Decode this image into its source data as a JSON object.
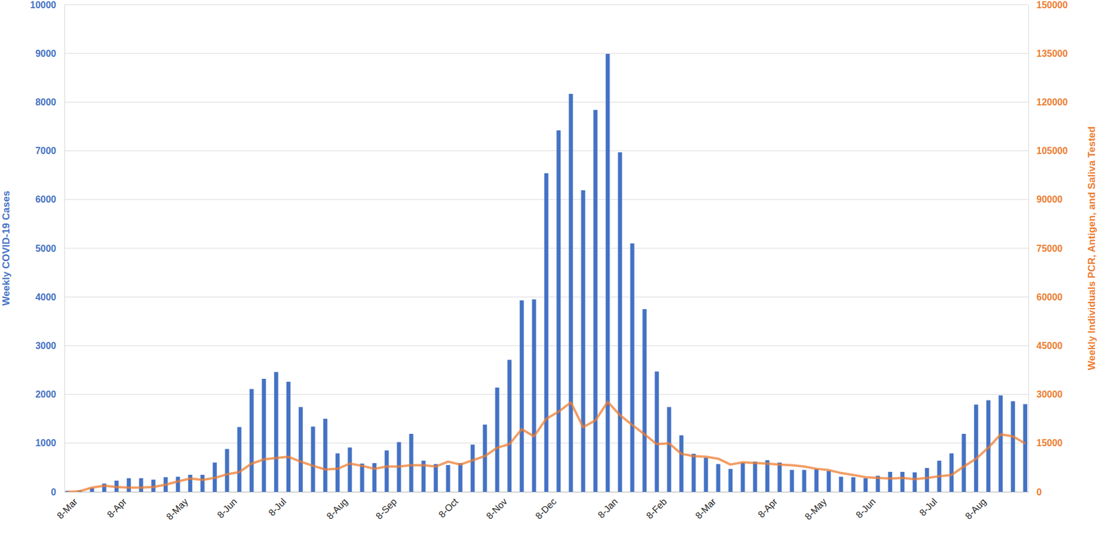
{
  "chart_data": {
    "type": "bar",
    "ylabel": "Weekly COVID-19 Cases",
    "y2label": "Weekly Individuals PCR, Antigen, and Saliva Tested",
    "categories": [
      "8-Mar",
      null,
      null,
      null,
      "8-Apr",
      null,
      null,
      null,
      null,
      "8-May",
      null,
      null,
      null,
      "8-Jun",
      null,
      null,
      null,
      "8-Jul",
      null,
      null,
      null,
      null,
      "8-Aug",
      null,
      null,
      null,
      "8-Sep",
      null,
      null,
      null,
      null,
      "8-Oct",
      null,
      null,
      null,
      "8-Nov",
      null,
      null,
      null,
      "8-Dec",
      null,
      null,
      null,
      null,
      "8-Jan",
      null,
      null,
      null,
      "8-Feb",
      null,
      null,
      null,
      "8-Mar",
      null,
      null,
      null,
      null,
      "8-Apr",
      null,
      null,
      null,
      "8-May",
      null,
      null,
      null,
      "8-Jun",
      null,
      null,
      null,
      null,
      "8-Jul",
      null,
      null,
      null,
      "8-Aug",
      null,
      null,
      null,
      null
    ],
    "series": [
      {
        "type": "bar",
        "color": "#4472c4",
        "values": [
          20,
          30,
          80,
          170,
          230,
          280,
          280,
          250,
          300,
          310,
          350,
          350,
          600,
          880,
          1330,
          2110,
          2320,
          2460,
          2260,
          1740,
          1340,
          1500,
          790,
          910,
          580,
          590,
          850,
          1020,
          1190,
          640,
          570,
          550,
          590,
          970,
          1380,
          2140,
          2710,
          3930,
          3950,
          6540,
          7420,
          8170,
          6190,
          7840,
          8990,
          6970,
          5100,
          3750,
          2470,
          1740,
          1160,
          780,
          700,
          570,
          470,
          600,
          620,
          650,
          600,
          450,
          450,
          470,
          430,
          310,
          300,
          280,
          330,
          410,
          410,
          400,
          490,
          640,
          790,
          1190,
          1790,
          1880,
          1980,
          1860,
          1800
        ]
      },
      {
        "type": "line",
        "axis": "y2",
        "color": "#ed7d31",
        "values": [
          0,
          200,
          1300,
          1900,
          1500,
          1300,
          1300,
          1500,
          2200,
          3200,
          4100,
          3700,
          4300,
          5400,
          6100,
          8700,
          10000,
          10400,
          10800,
          9300,
          8000,
          6900,
          7100,
          8700,
          8000,
          7100,
          7800,
          7800,
          8200,
          8200,
          7800,
          9300,
          8400,
          9700,
          11000,
          13600,
          14700,
          19300,
          17100,
          22500,
          24700,
          27500,
          19900,
          22000,
          27700,
          23600,
          20600,
          17700,
          14700,
          14900,
          11700,
          11000,
          10800,
          10200,
          8400,
          9100,
          8900,
          8700,
          8400,
          8200,
          7800,
          7100,
          6700,
          5800,
          5200,
          4500,
          4300,
          4100,
          4300,
          3900,
          4300,
          4800,
          5200,
          7800,
          10200,
          13600,
          17700,
          17100,
          14900
        ]
      }
    ],
    "ylim": [
      0,
      10000
    ],
    "yticks": [
      0,
      1000,
      2000,
      3000,
      4000,
      5000,
      6000,
      7000,
      8000,
      9000,
      10000
    ],
    "y2lim": [
      0,
      150000
    ],
    "y2ticks": [
      0,
      15000,
      30000,
      45000,
      60000,
      75000,
      90000,
      105000,
      120000,
      135000,
      150000
    ],
    "grid": true
  }
}
